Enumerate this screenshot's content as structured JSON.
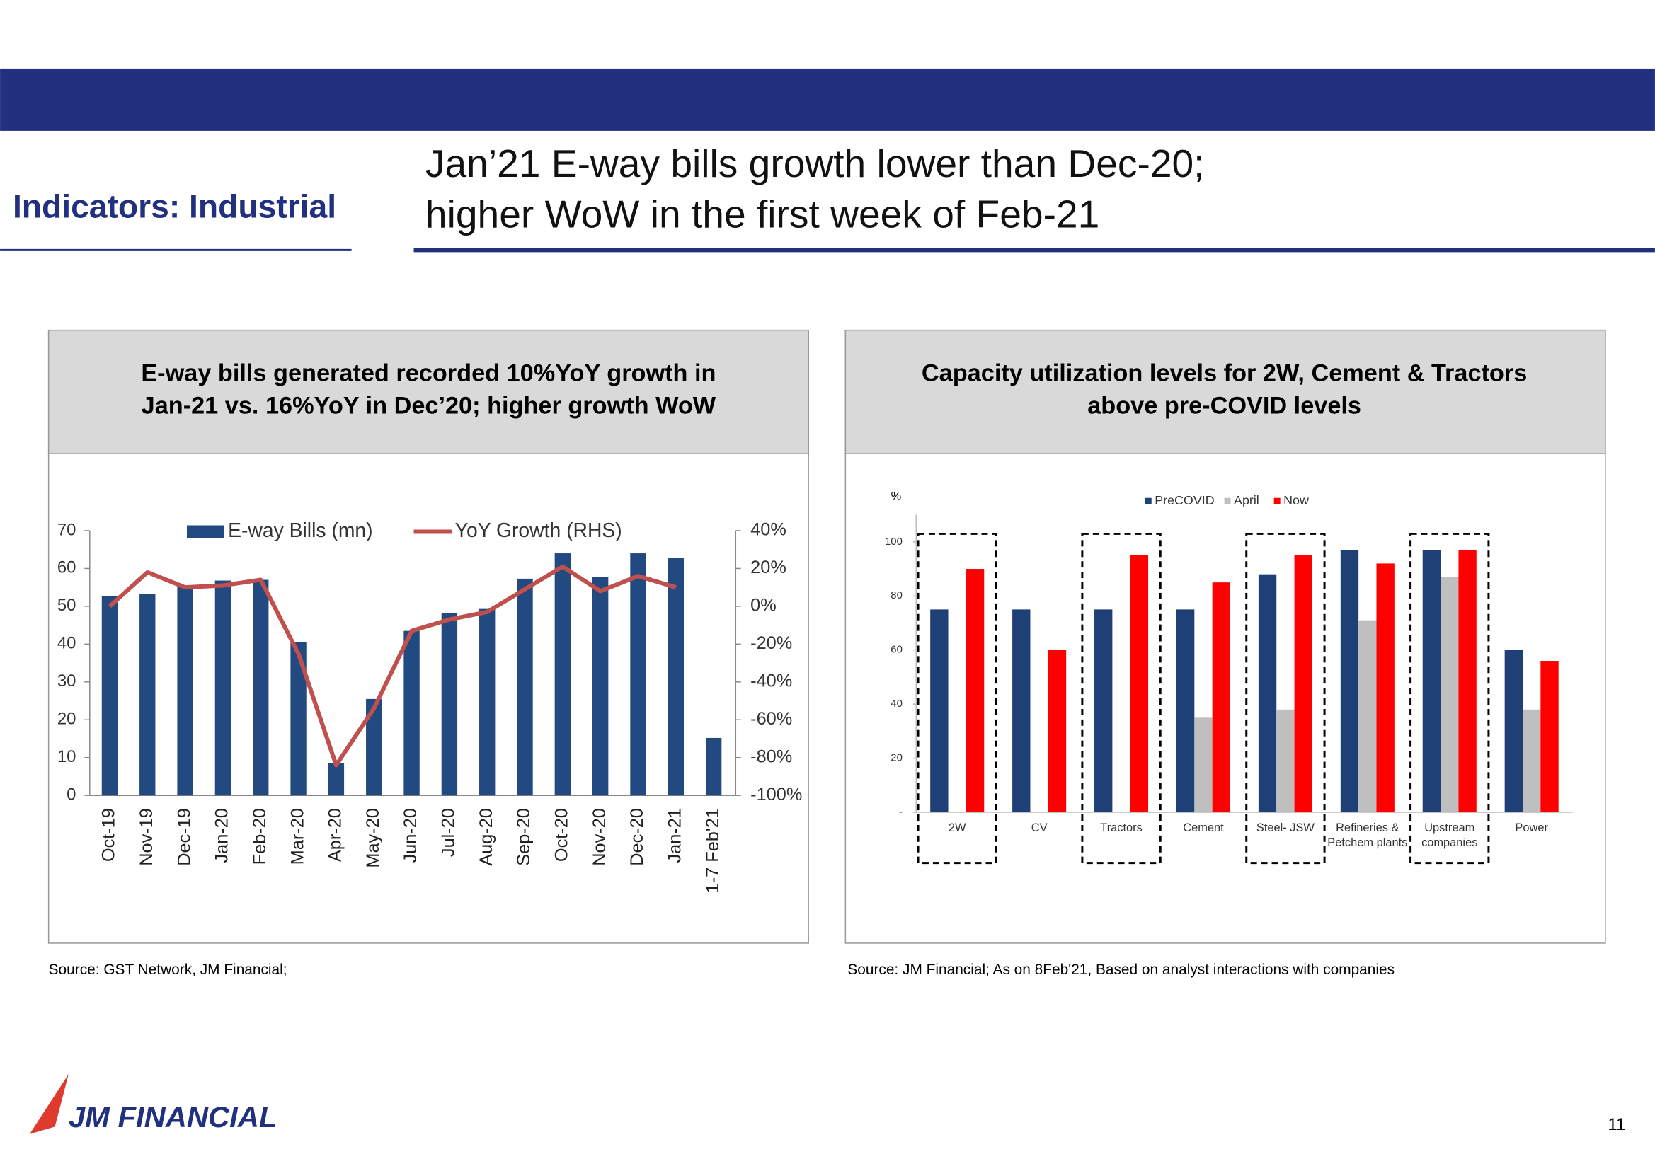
{
  "header": {
    "section": "Indicators: Industrial",
    "title": [
      "Jan’21 E-way bills growth lower than Dec-20;",
      "higher WoW in the first week of Feb-21"
    ]
  },
  "chart_data": [
    {
      "type": "bar_line",
      "title": [
        "E-way bills generated recorded 10%YoY growth in",
        "Jan-21 vs. 16%YoY in Dec’20; higher growth WoW"
      ],
      "categories": [
        "Oct-19",
        "Nov-19",
        "Dec-19",
        "Jan-20",
        "Feb-20",
        "Mar-20",
        "Apr-20",
        "May-20",
        "Jun-20",
        "Jul-20",
        "Aug-20",
        "Sep-20",
        "Oct-20",
        "Nov-20",
        "Dec-20",
        "Jan-21",
        "1-7 Feb'21"
      ],
      "series": [
        {
          "name": "E-way Bills (mn)",
          "color": "#234a80",
          "values": [
            52.7,
            53.3,
            55.5,
            56.8,
            57.0,
            40.5,
            8.5,
            25.5,
            43.5,
            48.2,
            49.3,
            57.3,
            64.0,
            57.7,
            64.0,
            62.8,
            15.2
          ]
        },
        {
          "name": "YoY Growth (RHS)",
          "color": "#c0504d",
          "axis": "y2",
          "values": [
            0,
            18,
            10,
            11,
            14,
            -25,
            -84,
            -54,
            -13,
            -7,
            -3,
            9,
            21,
            8,
            16,
            10,
            null
          ]
        }
      ],
      "ylim": [
        0,
        70
      ],
      "yticks": [
        0,
        10,
        20,
        30,
        40,
        50,
        60,
        70
      ],
      "y2lim": [
        -100,
        40
      ],
      "y2ticks": [
        {
          "value": -100,
          "label": "-100%"
        },
        {
          "value": -80,
          "label": "-80%"
        },
        {
          "value": -60,
          "label": "-60%"
        },
        {
          "value": -40,
          "label": "-40%"
        },
        {
          "value": -20,
          "label": "-20%"
        },
        {
          "value": 0,
          "label": "0%"
        },
        {
          "value": 20,
          "label": "20%"
        },
        {
          "value": 40,
          "label": "40%"
        }
      ],
      "source": "Source: GST Network, JM Financial;"
    },
    {
      "type": "grouped_bar",
      "title": [
        "Capacity utilization levels for 2W, Cement & Tractors",
        "above pre-COVID levels"
      ],
      "y_label": "%",
      "categories": [
        "2W",
        "CV",
        "Tractors",
        "Cement",
        "Steel- JSW",
        "Refineries & Petchem plants",
        "Upstream companies",
        "Power"
      ],
      "series": [
        {
          "name": "PreCOVID",
          "color": "#1f3f77",
          "values": [
            75,
            75,
            75,
            75,
            88,
            97,
            97,
            60
          ]
        },
        {
          "name": "April",
          "color": "#bfbfbf",
          "values": [
            null,
            null,
            null,
            35,
            38,
            71,
            87,
            38
          ]
        },
        {
          "name": "Now",
          "color": "#ff0000",
          "values": [
            90,
            60,
            95,
            85,
            95,
            92,
            97,
            56
          ]
        }
      ],
      "ylim": [
        0,
        110
      ],
      "yticks": [
        {
          "value": 0,
          "label": "-"
        },
        20,
        40,
        60,
        80,
        100
      ],
      "source": "Source: JM Financial; As on 8Feb'21, Based on analyst interactions with companies"
    }
  ],
  "footer": {
    "logo": "JM FINANCIAL",
    "page": "11"
  }
}
